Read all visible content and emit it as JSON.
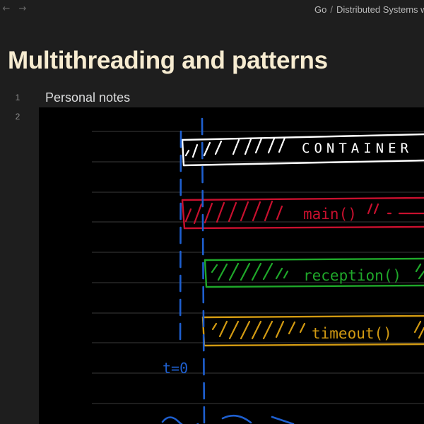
{
  "nav": {
    "back_glyph": "←",
    "forward_glyph": "→"
  },
  "breadcrumb": {
    "items": [
      "Go",
      "Distributed Systems w"
    ],
    "separator": "/"
  },
  "page": {
    "title": "Multithreading and patterns"
  },
  "editor": {
    "line_numbers": [
      "1",
      "2"
    ],
    "line_1_text": "Personal notes"
  },
  "drawing": {
    "boxes": [
      {
        "label": "CONTAINER",
        "color": "#ffffff"
      },
      {
        "label": "main()",
        "color": "#c8102e"
      },
      {
        "label": "reception()",
        "color": "#1fa82a"
      },
      {
        "label": "timeout()",
        "color": "#d29a12"
      }
    ],
    "time_marker": "t=0",
    "guide_color": "#1e5fcf",
    "rule_color": "#3a3a3a"
  }
}
